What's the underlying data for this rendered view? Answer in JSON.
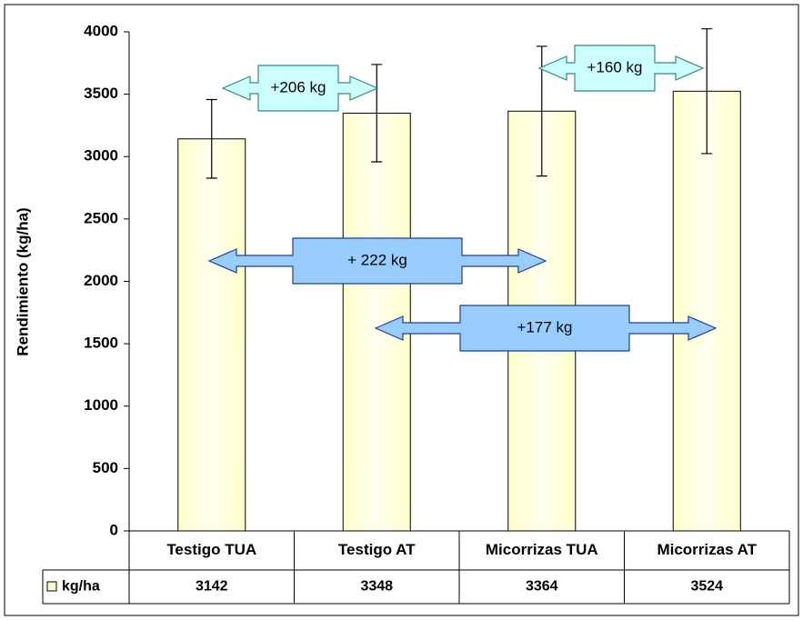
{
  "chart_data": {
    "type": "bar",
    "y_label": "Rendimiento (kg/ha)",
    "categories": [
      "Testigo TUA",
      "Testigo AT",
      "Micorrizas TUA",
      "Micorrizas AT"
    ],
    "series": [
      {
        "name": "kg/ha",
        "color": "#ffffcc",
        "values": [
          3142,
          3348,
          3364,
          3524
        ],
        "errors": [
          315,
          390,
          520,
          500
        ]
      }
    ],
    "ylim": [
      0,
      4000
    ],
    "yticks": [
      0,
      500,
      1000,
      1500,
      2000,
      2500,
      3000,
      3500,
      4000
    ],
    "annotations": [
      {
        "text": "+206 kg"
      },
      {
        "text": "+160 kg"
      },
      {
        "text": "+ 222 kg"
      },
      {
        "text": "+177 kg"
      }
    ]
  }
}
